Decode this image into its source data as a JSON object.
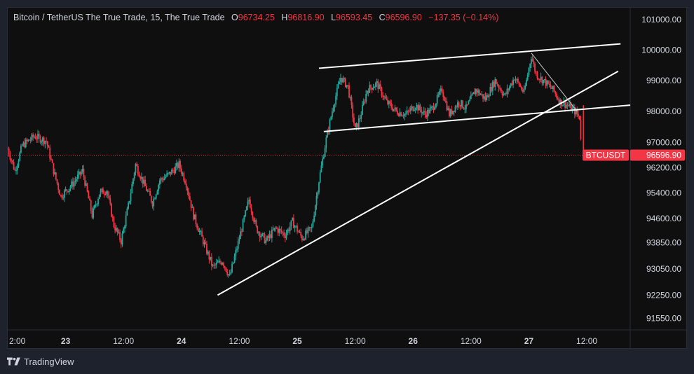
{
  "legend": {
    "symbol": "Bitcoin / TetherUS The True Trade, 15, The True Trade",
    "o_label": "O",
    "o_value": "96734.25",
    "h_label": "H",
    "h_value": "96816.90",
    "l_label": "L",
    "l_value": "96593.45",
    "c_label": "C",
    "c_value": "96596.90",
    "change": "−137.35 (−0.14%)"
  },
  "footer": {
    "brand": "TradingView",
    "logo_icon": "tradingview-logo-icon"
  },
  "colors": {
    "up": "#26a69a",
    "down": "#f23645",
    "background": "#0f0f10",
    "axis_text": "#d1d4dc",
    "trendline": "#ffffff"
  },
  "chart_data": {
    "type": "candlestick",
    "symbol": "BTCUSDT",
    "timeframe": "15",
    "x_range": [
      "2024-11-22T12:00",
      "2024-11-27T21:00"
    ],
    "y_range": [
      91200,
      101400
    ],
    "y_scale": "log",
    "y_ticks": [
      "101000.00",
      "100000.00",
      "99000.00",
      "98000.00",
      "97000.00",
      "96200.00",
      "95400.00",
      "94600.00",
      "93850.00",
      "93050.00",
      "92250.00",
      "91550.00"
    ],
    "x_ticks": [
      {
        "label": "2:00",
        "t": "2024-11-22T12:00",
        "bold": false
      },
      {
        "label": "23",
        "t": "2024-11-23T00:00",
        "bold": true
      },
      {
        "label": "12:00",
        "t": "2024-11-23T12:00",
        "bold": false
      },
      {
        "label": "24",
        "t": "2024-11-24T00:00",
        "bold": true
      },
      {
        "label": "12:00",
        "t": "2024-11-24T12:00",
        "bold": false
      },
      {
        "label": "25",
        "t": "2024-11-25T00:00",
        "bold": true
      },
      {
        "label": "12:00",
        "t": "2024-11-25T12:00",
        "bold": false
      },
      {
        "label": "26",
        "t": "2024-11-26T00:00",
        "bold": true
      },
      {
        "label": "12:00",
        "t": "2024-11-26T12:00",
        "bold": false
      },
      {
        "label": "27",
        "t": "2024-11-27T00:00",
        "bold": true
      },
      {
        "label": "12:00",
        "t": "2024-11-27T12:00",
        "bold": false
      }
    ],
    "price_path": [
      [
        "2024-11-22T12:00",
        96800
      ],
      [
        "2024-11-22T13:30",
        96100
      ],
      [
        "2024-11-22T15:00",
        96900
      ],
      [
        "2024-11-22T17:30",
        97200
      ],
      [
        "2024-11-22T20:00",
        97050
      ],
      [
        "2024-11-22T21:30",
        96100
      ],
      [
        "2024-11-22T23:00",
        95300
      ],
      [
        "2024-11-23T01:30",
        95700
      ],
      [
        "2024-11-23T03:30",
        96100
      ],
      [
        "2024-11-23T05:30",
        94700
      ],
      [
        "2024-11-23T07:00",
        95400
      ],
      [
        "2024-11-23T08:30",
        95500
      ],
      [
        "2024-11-23T10:00",
        94400
      ],
      [
        "2024-11-23T11:30",
        93900
      ],
      [
        "2024-11-23T13:00",
        95000
      ],
      [
        "2024-11-23T14:30",
        96300
      ],
      [
        "2024-11-23T16:30",
        95600
      ],
      [
        "2024-11-23T18:00",
        95100
      ],
      [
        "2024-11-23T19:30",
        95800
      ],
      [
        "2024-11-23T21:30",
        96000
      ],
      [
        "2024-11-23T23:30",
        96300
      ],
      [
        "2024-11-24T01:00",
        95700
      ],
      [
        "2024-11-24T02:30",
        94700
      ],
      [
        "2024-11-24T04:30",
        93900
      ],
      [
        "2024-11-24T06:30",
        93100
      ],
      [
        "2024-11-24T08:30",
        93300
      ],
      [
        "2024-11-24T10:00",
        92800
      ],
      [
        "2024-11-24T11:30",
        93700
      ],
      [
        "2024-11-24T13:00",
        94600
      ],
      [
        "2024-11-24T14:00",
        95200
      ],
      [
        "2024-11-24T15:30",
        94300
      ],
      [
        "2024-11-24T17:30",
        93900
      ],
      [
        "2024-11-24T19:30",
        94300
      ],
      [
        "2024-11-24T21:30",
        94100
      ],
      [
        "2024-11-24T23:00",
        94500
      ],
      [
        "2024-11-25T01:00",
        94000
      ],
      [
        "2024-11-25T03:00",
        94300
      ],
      [
        "2024-11-25T04:30",
        95800
      ],
      [
        "2024-11-25T06:00",
        97100
      ],
      [
        "2024-11-25T07:30",
        98200
      ],
      [
        "2024-11-25T09:00",
        99100
      ],
      [
        "2024-11-25T10:30",
        98800
      ],
      [
        "2024-11-25T12:00",
        97400
      ],
      [
        "2024-11-25T13:00",
        97800
      ],
      [
        "2024-11-25T14:30",
        98700
      ],
      [
        "2024-11-25T16:30",
        98900
      ],
      [
        "2024-11-25T18:30",
        98300
      ],
      [
        "2024-11-25T20:30",
        98000
      ],
      [
        "2024-11-25T22:30",
        97900
      ],
      [
        "2024-11-26T00:30",
        98200
      ],
      [
        "2024-11-26T02:30",
        97900
      ],
      [
        "2024-11-26T04:00",
        98100
      ],
      [
        "2024-11-26T06:00",
        98700
      ],
      [
        "2024-11-26T07:30",
        97900
      ],
      [
        "2024-11-26T09:30",
        98300
      ],
      [
        "2024-11-26T11:00",
        98100
      ],
      [
        "2024-11-26T13:00",
        98700
      ],
      [
        "2024-11-26T15:00",
        98400
      ],
      [
        "2024-11-26T17:00",
        99000
      ],
      [
        "2024-11-26T19:00",
        98500
      ],
      [
        "2024-11-26T21:00",
        99100
      ],
      [
        "2024-11-26T23:00",
        98600
      ],
      [
        "2024-11-27T00:30",
        99800
      ],
      [
        "2024-11-27T01:30",
        99200
      ],
      [
        "2024-11-27T03:00",
        99000
      ],
      [
        "2024-11-27T05:00",
        98700
      ],
      [
        "2024-11-27T06:30",
        98300
      ],
      [
        "2024-11-27T08:00",
        98200
      ],
      [
        "2024-11-27T09:30",
        98000
      ],
      [
        "2024-11-27T10:30",
        97800
      ],
      [
        "2024-11-27T11:00",
        96600
      ]
    ],
    "trendlines": [
      {
        "name": "channel-top",
        "from": [
          "2024-11-25T04:30",
          99400
        ],
        "to": [
          "2024-11-27T19:00",
          100200
        ]
      },
      {
        "name": "channel-bottom",
        "from": [
          "2024-11-25T05:30",
          97350
        ],
        "to": [
          "2024-11-27T21:00",
          98200
        ]
      },
      {
        "name": "rising-support",
        "from": [
          "2024-11-24T07:30",
          92250
        ],
        "to": [
          "2024-11-27T18:30",
          99300
        ]
      },
      {
        "name": "descending-guide",
        "from": [
          "2024-11-27T00:30",
          99900
        ],
        "to": [
          "2024-11-27T10:00",
          98000
        ]
      }
    ],
    "last_price": {
      "label": "BTCUSDT",
      "value": 96596.9,
      "display": "96596.90"
    }
  }
}
